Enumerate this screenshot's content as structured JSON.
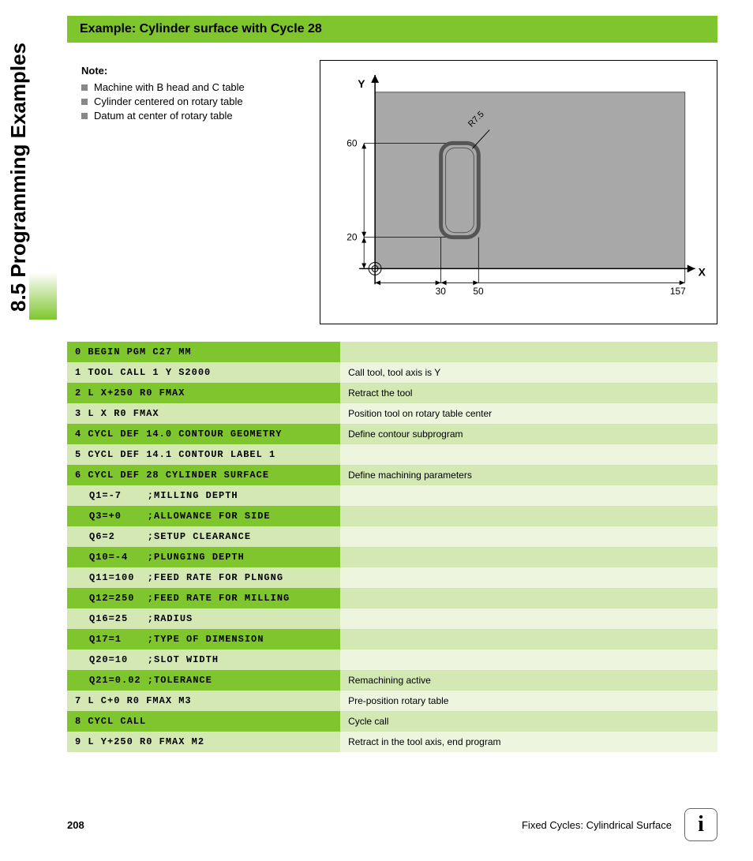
{
  "sideTitle": "8.5 Programming Examples",
  "bannerTitle": "Example: Cylinder surface with Cycle 28",
  "noteLabel": "Note:",
  "notes": [
    "Machine with B head and C table",
    "Cylinder centered on rotary table",
    "Datum at center of rotary table"
  ],
  "diagram": {
    "bg": "#a8a8a8",
    "pocket_border": "#555",
    "xLabel": "X",
    "yLabel": "Y",
    "rLabel": "R7.5",
    "yTicks": [
      "60",
      "20"
    ],
    "xTicks": [
      "30",
      "50",
      "157"
    ]
  },
  "rows": [
    {
      "code": "0 BEGIN PGM C27 MM",
      "desc": "",
      "g": 1
    },
    {
      "code": "1 TOOL CALL 1 Y S2000",
      "desc": "Call tool, tool axis is Y",
      "g": 2
    },
    {
      "code": "2 L X+250 R0 FMAX",
      "desc": "Retract the tool",
      "g": 1
    },
    {
      "code": "3 L X R0 FMAX",
      "desc": "Position tool on rotary table center",
      "g": 2
    },
    {
      "code": "4 CYCL DEF 14.0 CONTOUR GEOMETRY",
      "desc": "Define contour subprogram",
      "g": 1
    },
    {
      "code": "5 CYCL DEF 14.1 CONTOUR LABEL 1",
      "desc": "",
      "g": 2
    },
    {
      "code": "6 CYCL DEF 28 CYLINDER SURFACE",
      "desc": "Define machining parameters",
      "g": 1
    },
    {
      "code": "Q1=-7    ;MILLING DEPTH",
      "desc": "",
      "g": 2,
      "indent": true
    },
    {
      "code": "Q3=+0    ;ALLOWANCE FOR SIDE",
      "desc": "",
      "g": 1,
      "indent": true
    },
    {
      "code": "Q6=2     ;SETUP CLEARANCE",
      "desc": "",
      "g": 2,
      "indent": true
    },
    {
      "code": "Q10=-4   ;PLUNGING DEPTH",
      "desc": "",
      "g": 1,
      "indent": true
    },
    {
      "code": "Q11=100  ;FEED RATE FOR PLNGNG",
      "desc": "",
      "g": 2,
      "indent": true
    },
    {
      "code": "Q12=250  ;FEED RATE FOR MILLING",
      "desc": "",
      "g": 1,
      "indent": true
    },
    {
      "code": "Q16=25   ;RADIUS",
      "desc": "",
      "g": 2,
      "indent": true
    },
    {
      "code": "Q17=1    ;TYPE OF DIMENSION",
      "desc": "",
      "g": 1,
      "indent": true
    },
    {
      "code": "Q20=10   ;SLOT WIDTH",
      "desc": "",
      "g": 2,
      "indent": true
    },
    {
      "code": "Q21=0.02 ;TOLERANCE",
      "desc": "Remachining active",
      "g": 1,
      "indent": true
    },
    {
      "code": "7 L C+0 R0 FMAX M3",
      "desc": "Pre-position rotary table",
      "g": 2
    },
    {
      "code": "8 CYCL CALL",
      "desc": "Cycle call",
      "g": 1
    },
    {
      "code": "9 L Y+250 R0 FMAX M2",
      "desc": "Retract in the tool axis, end program",
      "g": 2
    }
  ],
  "footer": {
    "page": "208",
    "section": "Fixed Cycles: Cylindrical Surface",
    "info": "i"
  }
}
